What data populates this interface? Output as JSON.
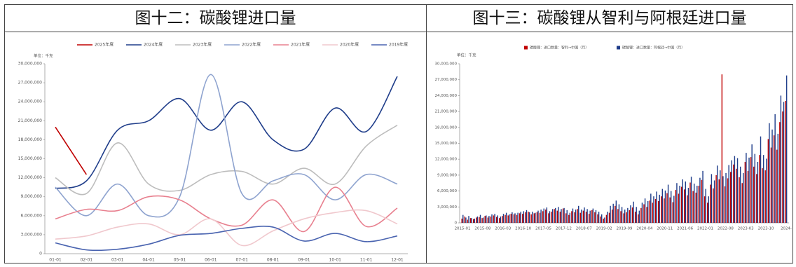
{
  "chart_data": [
    {
      "type": "line",
      "title": "图十二：碳酸锂进口量",
      "unit_label": "单位：千克",
      "smooth": true,
      "grid": false,
      "categories": [
        "01-01",
        "02-01",
        "03-01",
        "04-01",
        "05-01",
        "06-01",
        "07-01",
        "08-01",
        "09-01",
        "10-01",
        "11-01",
        "12-01"
      ],
      "ylim": [
        0,
        30000000
      ],
      "yticks": [
        0,
        {
          "value": 3000000,
          "label": "3,000,000"
        },
        {
          "value": 6000000,
          "label": "6,000,000"
        },
        {
          "value": 9000000,
          "label": "9,000,000"
        },
        {
          "value": 12000000,
          "label": "12,000,000"
        },
        {
          "value": 15000000,
          "label": "15,000,000"
        },
        {
          "value": 18000000,
          "label": "18,000,000"
        },
        {
          "value": 21000000,
          "label": "21,000,000"
        },
        {
          "value": 24000000,
          "label": "24,000,000"
        },
        {
          "value": 27000000,
          "label": "27,000,000"
        },
        {
          "value": 30000000,
          "label": "30,000,000"
        }
      ],
      "series": [
        {
          "name": "2025年度",
          "color": "#c00000",
          "values": [
            20000000,
            12500000,
            null,
            null,
            null,
            null,
            null,
            null,
            null,
            null,
            null,
            null
          ]
        },
        {
          "name": "2024年度",
          "color": "#1f3d8a",
          "values": [
            10300000,
            11500000,
            19500000,
            21000000,
            24500000,
            19500000,
            24000000,
            18000000,
            16500000,
            23000000,
            19300000,
            28000000
          ]
        },
        {
          "name": "2023年度",
          "color": "#bdbdbd",
          "values": [
            12000000,
            9500000,
            17500000,
            11000000,
            10000000,
            12500000,
            13000000,
            11000000,
            13500000,
            11000000,
            17000000,
            20300000
          ]
        },
        {
          "name": "2022年度",
          "color": "#8ea3cf",
          "values": [
            10500000,
            6000000,
            11000000,
            6000000,
            9000000,
            28300000,
            9500000,
            11500000,
            12500000,
            8500000,
            12500000,
            11000000
          ]
        },
        {
          "name": "2021年度",
          "color": "#e8808f",
          "values": [
            5500000,
            7000000,
            6800000,
            9000000,
            8500000,
            5500000,
            4500000,
            8500000,
            3500000,
            10500000,
            4300000,
            7200000
          ]
        },
        {
          "name": "2020年度",
          "color": "#f0c8cd",
          "values": [
            2300000,
            2800000,
            4200000,
            4700000,
            3000000,
            5500000,
            1300000,
            3600000,
            5500000,
            6500000,
            6800000,
            4700000
          ]
        },
        {
          "name": "2019年度",
          "color": "#4a64b0",
          "values": [
            1700000,
            600000,
            700000,
            1500000,
            2900000,
            3200000,
            4000000,
            4200000,
            2000000,
            3200000,
            1900000,
            2800000
          ]
        }
      ]
    },
    {
      "type": "bar",
      "title": "图十三：碳酸锂从智利与阿根廷进口量",
      "unit_label": "单位：千克",
      "grid": false,
      "categories": [
        "2015-01",
        null,
        null,
        null,
        null,
        null,
        null,
        "2015-08",
        null,
        null,
        null,
        null,
        null,
        null,
        "2016-03",
        null,
        null,
        null,
        null,
        null,
        null,
        "2016-10",
        null,
        null,
        null,
        null,
        null,
        null,
        "2017-05",
        null,
        null,
        null,
        null,
        null,
        null,
        "2017-12",
        null,
        null,
        null,
        null,
        null,
        null,
        "2018-07",
        null,
        null,
        null,
        null,
        null,
        null,
        "2019-02",
        null,
        null,
        null,
        null,
        null,
        null,
        "2019-09",
        null,
        null,
        null,
        null,
        null,
        null,
        "2020-04",
        null,
        null,
        null,
        null,
        null,
        null,
        "2020-11",
        null,
        null,
        null,
        null,
        null,
        null,
        "2021-06",
        null,
        null,
        null,
        null,
        null,
        null,
        "2022-01",
        null,
        null,
        null,
        null,
        null,
        null,
        "2022-08",
        null,
        null,
        null,
        null,
        null,
        null,
        "2023-03",
        null,
        null,
        null,
        null,
        null,
        null,
        "2023-10",
        null,
        null,
        null,
        null,
        null,
        null,
        "2024-"
      ],
      "ylim": [
        0,
        30000000
      ],
      "yticks": [
        0,
        {
          "value": 3000000,
          "label": "3,000,000"
        },
        {
          "value": 6000000,
          "label": "6,000,000"
        },
        {
          "value": 9000000,
          "label": "9,000,000"
        },
        {
          "value": 12000000,
          "label": "12,000,000"
        },
        {
          "value": 15000000,
          "label": "15,000,000"
        },
        {
          "value": 18000000,
          "label": "18,000,000"
        },
        {
          "value": 21000000,
          "label": "21,000,000"
        },
        {
          "value": 24000000,
          "label": "24,000,000"
        },
        {
          "value": 27000000,
          "label": "27,000,000"
        },
        {
          "value": 30000000,
          "label": "30,000,000"
        }
      ],
      "series": [
        {
          "name": "碳酸锂：进口数量：智利→中国（月）",
          "color": "#c00000",
          "values": [
            800000,
            1200000,
            600000,
            900000,
            700000,
            1000000,
            1100000,
            900000,
            1300000,
            1000000,
            1200000,
            1400000,
            1100000,
            900000,
            1300000,
            1500000,
            1400000,
            1700000,
            1600000,
            1500000,
            1800000,
            1700000,
            2000000,
            2100000,
            1600000,
            1800000,
            2000000,
            1900000,
            2200000,
            2500000,
            1800000,
            2100000,
            2600000,
            2300000,
            2100000,
            2700000,
            1800000,
            1500000,
            2200000,
            2000000,
            2600000,
            1900000,
            2300000,
            2100000,
            1700000,
            2400000,
            2000000,
            1600000,
            1200000,
            800000,
            1500000,
            1900000,
            2500000,
            3200000,
            2600000,
            2200000,
            1800000,
            2000000,
            2400000,
            2900000,
            2100000,
            1600000,
            2800000,
            3500000,
            3000000,
            4200000,
            3800000,
            4500000,
            4100000,
            5000000,
            4600000,
            5600000,
            4800000,
            3900000,
            6200000,
            5500000,
            6800000,
            6300000,
            5200000,
            7600000,
            6000000,
            5700000,
            7000000,
            8100000,
            5000000,
            3800000,
            7200000,
            6500000,
            9000000,
            8200000,
            28000000,
            6900000,
            8400000,
            9600000,
            11000000,
            10200000,
            8600000,
            7500000,
            11500000,
            9800000,
            12400000,
            10600000,
            9200000,
            12800000,
            10300000,
            9900000,
            15800000,
            14200000,
            16500000,
            13800000,
            19000000,
            21000000,
            23000000
          ]
        },
        {
          "name": "碳酸锂：进口数量：阿根廷→中国（月）",
          "color": "#1f3d8a",
          "values": [
            1500000,
            1000000,
            1300000,
            900000,
            800000,
            1200000,
            1500000,
            1000000,
            1400000,
            1300000,
            1600000,
            1700000,
            1400000,
            1200000,
            1700000,
            1900000,
            1600000,
            2000000,
            1800000,
            1900000,
            2100000,
            2200000,
            2400000,
            2000000,
            2100000,
            1900000,
            2300000,
            2500000,
            2700000,
            2900000,
            2200000,
            2600000,
            2800000,
            3000000,
            2600000,
            2800000,
            2400000,
            1900000,
            2700000,
            2500000,
            3200000,
            2500000,
            2900000,
            2600000,
            2300000,
            2700000,
            2400000,
            2100000,
            1600000,
            1000000,
            2100000,
            3200000,
            3600000,
            4200000,
            3500000,
            3000000,
            2500000,
            2800000,
            3300000,
            4000000,
            3000000,
            2300000,
            3800000,
            4600000,
            4100000,
            5500000,
            5000000,
            5900000,
            5300000,
            6400000,
            6100000,
            7200000,
            6000000,
            5100000,
            7500000,
            7000000,
            8200000,
            7800000,
            6600000,
            8700000,
            7400000,
            7000000,
            8500000,
            9800000,
            6400000,
            5000000,
            9200000,
            8000000,
            10800000,
            9900000,
            8800000,
            9400000,
            10900000,
            11800000,
            12600000,
            12200000,
            10600000,
            9400000,
            13200000,
            12300000,
            14800000,
            13000000,
            11500000,
            16300000,
            12800000,
            12100000,
            18800000,
            17600000,
            20500000,
            16800000,
            24000000,
            22800000,
            27800000
          ]
        }
      ]
    }
  ]
}
